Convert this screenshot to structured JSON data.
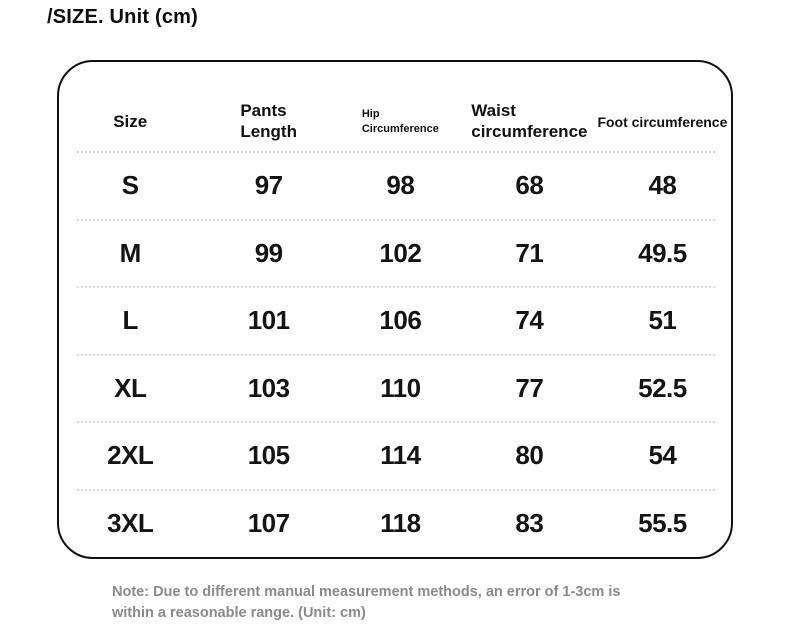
{
  "title": "/SIZE. Unit (cm)",
  "note": {
    "line1": "Note: Due to different manual measurement methods, an error of 1-3cm is",
    "line2": "within a reasonable range. (Unit: cm)"
  },
  "chart_data": {
    "type": "table",
    "title": "/SIZE. Unit (cm)",
    "unit": "cm",
    "columns": [
      "Size",
      "Pants Length",
      "Hip Circumference",
      "Waist circumference",
      "Foot circumference"
    ],
    "header": {
      "size": "Size",
      "pants_line1": "Pants",
      "pants_line2": "Length",
      "hip_line1": "Hip",
      "hip_line2": "Circumference",
      "waist_line1": "Waist",
      "waist_line2": "circumference",
      "foot": "Foot circumference"
    },
    "rows": [
      [
        "S",
        "97",
        "98",
        "68",
        "48"
      ],
      [
        "M",
        "99",
        "102",
        "71",
        "49.5"
      ],
      [
        "L",
        "101",
        "106",
        "74",
        "51"
      ],
      [
        "XL",
        "103",
        "110",
        "77",
        "52.5"
      ],
      [
        "2XL",
        "105",
        "114",
        "80",
        "54"
      ],
      [
        "3XL",
        "107",
        "118",
        "83",
        "55.5"
      ]
    ],
    "note": "Note: Due to different manual measurement methods, an error of 1-3cm is within a reasonable range. (Unit: cm)"
  },
  "colors": {
    "text": "#111111",
    "border": "#101010",
    "separator": "#d9d9d9",
    "note_text": "#8a8a8a",
    "background": "#ffffff"
  }
}
